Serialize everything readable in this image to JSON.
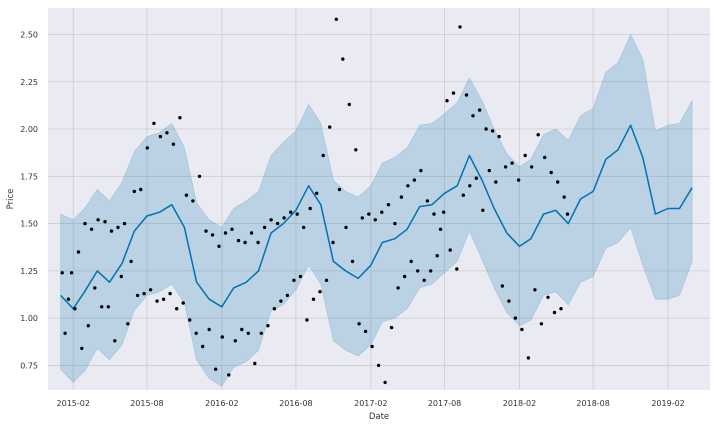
{
  "chart_data": {
    "type": "line",
    "title": "",
    "xlabel": "Date",
    "ylabel": "Price",
    "x_range": [
      "2014-12-01",
      "2019-05-15"
    ],
    "ylim": [
      0.62,
      2.64
    ],
    "x_ticks": [
      {
        "date": "2015-02-01",
        "label": "2015-02"
      },
      {
        "date": "2015-08-01",
        "label": "2015-08"
      },
      {
        "date": "2016-02-01",
        "label": "2016-02"
      },
      {
        "date": "2016-08-01",
        "label": "2016-08"
      },
      {
        "date": "2017-02-01",
        "label": "2017-02"
      },
      {
        "date": "2017-08-01",
        "label": "2017-08"
      },
      {
        "date": "2018-02-01",
        "label": "2018-02"
      },
      {
        "date": "2018-08-01",
        "label": "2018-08"
      },
      {
        "date": "2019-02-01",
        "label": "2019-02"
      }
    ],
    "y_ticks": [
      {
        "value": 0.75,
        "label": "0.75"
      },
      {
        "value": 1.0,
        "label": "1.00"
      },
      {
        "value": 1.25,
        "label": "1.25"
      },
      {
        "value": 1.5,
        "label": "1.50"
      },
      {
        "value": 1.75,
        "label": "1.75"
      },
      {
        "value": 2.0,
        "label": "2.00"
      },
      {
        "value": 2.25,
        "label": "2.25"
      },
      {
        "value": 2.5,
        "label": "2.50"
      }
    ],
    "grid": true,
    "colors": {
      "background": "#eaeaf2",
      "grid": "#cccccc",
      "forecast_line": "#0072b2",
      "interval_fill": "#0072b2",
      "points": "#000000"
    },
    "forecast": {
      "x": [
        "2015-01-01",
        "2015-02-01",
        "2015-03-01",
        "2015-04-01",
        "2015-05-01",
        "2015-06-01",
        "2015-07-01",
        "2015-08-01",
        "2015-09-01",
        "2015-10-01",
        "2015-11-01",
        "2015-12-01",
        "2016-01-01",
        "2016-02-01",
        "2016-03-01",
        "2016-04-01",
        "2016-05-01",
        "2016-06-01",
        "2016-07-01",
        "2016-08-01",
        "2016-09-01",
        "2016-10-01",
        "2016-11-01",
        "2016-12-01",
        "2017-01-01",
        "2017-02-01",
        "2017-03-01",
        "2017-04-01",
        "2017-05-01",
        "2017-06-01",
        "2017-07-01",
        "2017-08-01",
        "2017-09-01",
        "2017-10-01",
        "2017-11-01",
        "2017-12-01",
        "2018-01-01",
        "2018-02-01",
        "2018-03-01",
        "2018-04-01",
        "2018-05-01",
        "2018-06-01",
        "2018-07-01",
        "2018-08-01",
        "2018-09-01",
        "2018-10-01",
        "2018-11-01",
        "2018-12-01",
        "2019-01-01",
        "2019-02-01",
        "2019-03-01",
        "2019-04-01"
      ],
      "yhat": [
        1.12,
        1.05,
        1.14,
        1.25,
        1.19,
        1.29,
        1.46,
        1.54,
        1.56,
        1.6,
        1.48,
        1.19,
        1.1,
        1.06,
        1.16,
        1.19,
        1.25,
        1.45,
        1.5,
        1.57,
        1.7,
        1.6,
        1.3,
        1.25,
        1.21,
        1.28,
        1.4,
        1.42,
        1.47,
        1.59,
        1.6,
        1.66,
        1.7,
        1.86,
        1.73,
        1.58,
        1.45,
        1.38,
        1.42,
        1.55,
        1.57,
        1.5,
        1.63,
        1.67,
        1.84,
        1.89,
        2.02,
        1.85,
        1.55,
        1.58,
        1.58,
        1.69
      ],
      "yhat_lower": [
        0.73,
        0.66,
        0.72,
        0.84,
        0.78,
        0.86,
        1.04,
        1.12,
        1.14,
        1.18,
        1.08,
        0.78,
        0.68,
        0.64,
        0.74,
        0.77,
        0.83,
        1.04,
        1.07,
        1.15,
        1.28,
        1.18,
        0.88,
        0.83,
        0.8,
        0.86,
        0.98,
        1.0,
        1.05,
        1.16,
        1.18,
        1.24,
        1.3,
        1.46,
        1.31,
        1.16,
        1.03,
        0.96,
        0.99,
        1.12,
        1.14,
        1.07,
        1.19,
        1.22,
        1.37,
        1.4,
        1.48,
        1.28,
        1.1,
        1.1,
        1.12,
        1.3
      ],
      "yhat_upper": [
        1.55,
        1.52,
        1.58,
        1.68,
        1.62,
        1.72,
        1.88,
        1.96,
        1.98,
        2.03,
        1.9,
        1.61,
        1.52,
        1.48,
        1.58,
        1.62,
        1.67,
        1.86,
        1.93,
        1.99,
        2.13,
        2.03,
        1.73,
        1.67,
        1.64,
        1.7,
        1.82,
        1.85,
        1.9,
        2.02,
        2.03,
        2.08,
        2.14,
        2.27,
        2.15,
        2.0,
        1.87,
        1.8,
        1.84,
        1.97,
        2.0,
        1.94,
        2.07,
        2.11,
        2.3,
        2.35,
        2.5,
        2.37,
        1.99,
        2.02,
        2.03,
        2.15
      ]
    },
    "observations": {
      "x": [
        "2015-01-05",
        "2015-01-12",
        "2015-01-20",
        "2015-01-28",
        "2015-02-05",
        "2015-02-14",
        "2015-02-22",
        "2015-03-02",
        "2015-03-10",
        "2015-03-18",
        "2015-03-26",
        "2015-04-03",
        "2015-04-12",
        "2015-04-20",
        "2015-04-28",
        "2015-05-06",
        "2015-05-14",
        "2015-05-22",
        "2015-05-30",
        "2015-06-07",
        "2015-06-15",
        "2015-06-23",
        "2015-07-01",
        "2015-07-09",
        "2015-07-17",
        "2015-07-25",
        "2015-08-02",
        "2015-08-10",
        "2015-08-18",
        "2015-08-26",
        "2015-09-03",
        "2015-09-11",
        "2015-09-19",
        "2015-09-27",
        "2015-10-05",
        "2015-10-13",
        "2015-10-21",
        "2015-10-29",
        "2015-11-06",
        "2015-11-14",
        "2015-11-22",
        "2015-11-30",
        "2015-12-08",
        "2015-12-16",
        "2015-12-24",
        "2016-01-01",
        "2016-01-09",
        "2016-01-17",
        "2016-01-25",
        "2016-02-02",
        "2016-02-10",
        "2016-02-18",
        "2016-02-26",
        "2016-03-05",
        "2016-03-13",
        "2016-03-21",
        "2016-03-29",
        "2016-04-06",
        "2016-04-14",
        "2016-04-22",
        "2016-04-30",
        "2016-05-08",
        "2016-05-16",
        "2016-05-24",
        "2016-06-01",
        "2016-06-09",
        "2016-06-17",
        "2016-06-25",
        "2016-07-03",
        "2016-07-11",
        "2016-07-19",
        "2016-07-27",
        "2016-08-04",
        "2016-08-12",
        "2016-08-20",
        "2016-08-28",
        "2016-09-05",
        "2016-09-13",
        "2016-09-21",
        "2016-09-29",
        "2016-10-07",
        "2016-10-15",
        "2016-10-23",
        "2016-10-31",
        "2016-11-08",
        "2016-11-16",
        "2016-11-24",
        "2016-12-02",
        "2016-12-10",
        "2016-12-18",
        "2016-12-26",
        "2017-01-03",
        "2017-01-11",
        "2017-01-19",
        "2017-01-27",
        "2017-02-04",
        "2017-02-12",
        "2017-02-20",
        "2017-02-28",
        "2017-03-08",
        "2017-03-16",
        "2017-03-24",
        "2017-04-01",
        "2017-04-09",
        "2017-04-17",
        "2017-04-25",
        "2017-05-03",
        "2017-05-11",
        "2017-05-19",
        "2017-05-27",
        "2017-06-04",
        "2017-06-12",
        "2017-06-20",
        "2017-06-28",
        "2017-07-06",
        "2017-07-14",
        "2017-07-22",
        "2017-07-30",
        "2017-08-07",
        "2017-08-15",
        "2017-08-23",
        "2017-08-31",
        "2017-09-08",
        "2017-09-16",
        "2017-09-24",
        "2017-10-02",
        "2017-10-10",
        "2017-10-18",
        "2017-10-26",
        "2017-11-03",
        "2017-11-11",
        "2017-11-19",
        "2017-11-27",
        "2017-12-05",
        "2017-12-13",
        "2017-12-21",
        "2017-12-29",
        "2018-01-06",
        "2018-01-14",
        "2018-01-22",
        "2018-01-30",
        "2018-02-07",
        "2018-02-15",
        "2018-02-23",
        "2018-03-03",
        "2018-03-11",
        "2018-03-19",
        "2018-03-27",
        "2018-04-04",
        "2018-04-12",
        "2018-04-20",
        "2018-04-28",
        "2018-05-06",
        "2018-05-14",
        "2018-05-22",
        "2018-05-30"
      ],
      "y": [
        1.24,
        0.92,
        1.1,
        1.24,
        1.05,
        1.35,
        0.84,
        1.5,
        0.96,
        1.47,
        1.16,
        1.52,
        1.06,
        1.51,
        1.06,
        1.46,
        0.88,
        1.48,
        1.22,
        1.5,
        0.97,
        1.3,
        1.67,
        1.12,
        1.68,
        1.13,
        1.9,
        1.15,
        2.03,
        1.09,
        1.96,
        1.1,
        1.98,
        1.13,
        1.92,
        1.05,
        2.06,
        1.08,
        1.65,
        0.99,
        1.62,
        0.92,
        1.75,
        0.85,
        1.46,
        0.94,
        1.44,
        0.73,
        1.38,
        0.9,
        1.45,
        0.7,
        1.47,
        0.88,
        1.41,
        0.94,
        1.4,
        0.92,
        1.45,
        0.76,
        1.4,
        0.92,
        1.48,
        0.96,
        1.52,
        1.05,
        1.5,
        1.09,
        1.53,
        1.12,
        1.56,
        1.2,
        1.55,
        1.22,
        1.48,
        0.99,
        1.58,
        1.1,
        1.66,
        1.14,
        1.86,
        1.2,
        2.01,
        1.4,
        2.58,
        1.68,
        2.37,
        1.48,
        2.13,
        1.3,
        1.89,
        0.97,
        1.53,
        0.93,
        1.55,
        0.85,
        1.52,
        0.75,
        1.56,
        0.66,
        1.6,
        0.95,
        1.5,
        1.16,
        1.64,
        1.22,
        1.7,
        1.3,
        1.73,
        1.25,
        1.78,
        1.2,
        1.62,
        1.25,
        1.55,
        1.33,
        1.47,
        1.56,
        2.15,
        1.36,
        2.19,
        1.26,
        2.54,
        1.65,
        2.18,
        1.7,
        2.07,
        1.74,
        2.1,
        1.57,
        2.0,
        1.78,
        1.99,
        1.72,
        1.96,
        1.17,
        1.8,
        1.09,
        1.82,
        1.0,
        1.73,
        0.94,
        1.86,
        0.79,
        1.8,
        1.15,
        1.97,
        0.97,
        1.85,
        1.11,
        1.77,
        1.03,
        1.72,
        1.05,
        1.64,
        1.55
      ]
    }
  }
}
